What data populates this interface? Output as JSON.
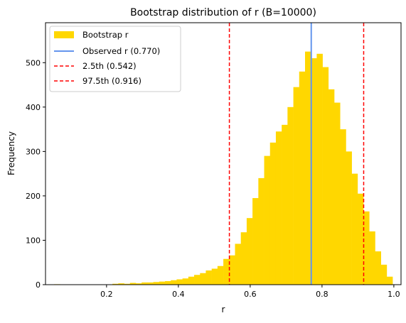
{
  "chart_data": {
    "type": "bar",
    "title": "Bootstrap distribution of r (B=10000)",
    "xlabel": "r",
    "ylabel": "Frequency",
    "xlim": [
      0.03,
      1.02
    ],
    "ylim": [
      0,
      590
    ],
    "x_ticks": [
      0.2,
      0.4,
      0.6,
      0.8,
      1.0
    ],
    "x_tick_labels": [
      "0.2",
      "0.4",
      "0.6",
      "0.8",
      "1.0"
    ],
    "y_ticks": [
      0,
      100,
      200,
      300,
      400,
      500
    ],
    "y_tick_labels": [
      "0",
      "100",
      "200",
      "300",
      "400",
      "500"
    ],
    "grid": false,
    "legend_position": "top-left",
    "colors": {
      "histogram": "#FFD700",
      "observed": "#6495ED",
      "percentile": "#FF0000"
    },
    "histogram": {
      "name": "Bootstrap r",
      "bin_starts": [
        0.054,
        0.2164,
        0.2327,
        0.2489,
        0.2652,
        0.2814,
        0.2977,
        0.3139,
        0.3302,
        0.3464,
        0.3627,
        0.3789,
        0.3952,
        0.4114,
        0.4277,
        0.4439,
        0.4602,
        0.4764,
        0.4927,
        0.5089,
        0.5252,
        0.5414,
        0.5577,
        0.5739,
        0.5902,
        0.6064,
        0.6227,
        0.6389,
        0.6552,
        0.6714,
        0.6877,
        0.7039,
        0.7202,
        0.7364,
        0.7527,
        0.7689,
        0.7852,
        0.8014,
        0.8177,
        0.8339,
        0.8502,
        0.8664,
        0.8827,
        0.8989,
        0.9152,
        0.9314,
        0.9477,
        0.9639,
        0.9802
      ],
      "bin_width": 0.01625,
      "counts": [
        1,
        2,
        3,
        2,
        4,
        3,
        5,
        5,
        6,
        7,
        8,
        10,
        12,
        14,
        18,
        22,
        26,
        32,
        36,
        42,
        58,
        66,
        92,
        118,
        150,
        195,
        240,
        290,
        320,
        345,
        360,
        400,
        445,
        480,
        525,
        510,
        520,
        490,
        440,
        410,
        350,
        300,
        250,
        205,
        165,
        120,
        75,
        45,
        18
      ]
    },
    "lines": [
      {
        "name": "Observed r (0.770)",
        "x": 0.77,
        "style": "solid",
        "color": "#6495ED"
      },
      {
        "name": "2.5th (0.542)",
        "x": 0.542,
        "style": "dashed",
        "color": "#FF0000"
      },
      {
        "name": "97.5th (0.916)",
        "x": 0.916,
        "style": "dashed",
        "color": "#FF0000"
      }
    ],
    "legend": [
      "Bootstrap r",
      "Observed r (0.770)",
      "2.5th (0.542)",
      "97.5th (0.916)"
    ]
  }
}
